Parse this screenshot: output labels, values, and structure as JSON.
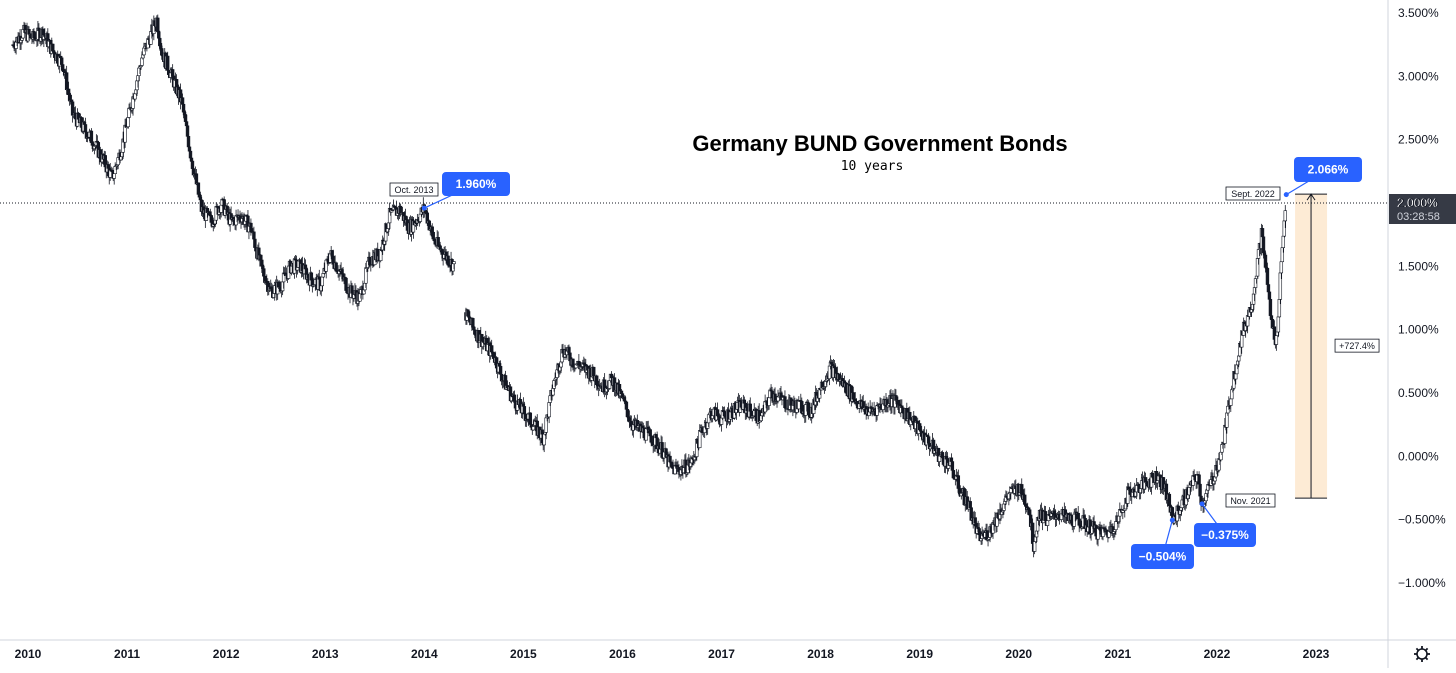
{
  "chart_data": {
    "type": "candlestick",
    "title": "Germany BUND Government Bonds",
    "subtitle": "10 years",
    "y_unit": "%",
    "ylim": [
      -1.2,
      3.6
    ],
    "y_ticks": [
      "3.500%",
      "3.000%",
      "2.500%",
      "2.000%",
      "1.500%",
      "1.000%",
      "0.500%",
      "0.000%",
      "−0.500%",
      "−1.000%"
    ],
    "y_tick_values": [
      3.5,
      3.0,
      2.5,
      2.0,
      1.5,
      1.0,
      0.5,
      0.0,
      -0.5,
      -1.0
    ],
    "x_ticks": [
      "2010",
      "2011",
      "2012",
      "2013",
      "2014",
      "2015",
      "2016",
      "2017",
      "2018",
      "2019",
      "2020",
      "2021",
      "2022",
      "2023"
    ],
    "x_tick_values": [
      2010,
      2011,
      2012,
      2013,
      2014,
      2015,
      2016,
      2017,
      2018,
      2019,
      2020,
      2021,
      2022,
      2023
    ],
    "xlim": [
      2009.85,
      2023.6
    ],
    "current_price": {
      "label": "2.000%",
      "value": 2.0,
      "countdown": "03:28:58"
    },
    "callouts": [
      {
        "label": "1.960%",
        "x": 2014.0,
        "y": 1.96,
        "color": "#2962ff"
      },
      {
        "label": "2.066%",
        "x": 2022.7,
        "y": 2.066,
        "color": "#2962ff"
      },
      {
        "label": "−0.504%",
        "x": 2021.55,
        "y": -0.504,
        "color": "#2962ff"
      },
      {
        "label": "−0.375%",
        "x": 2021.85,
        "y": -0.375,
        "color": "#2962ff"
      }
    ],
    "date_labels": [
      {
        "label": "Oct. 2013",
        "x": 2013.8
      },
      {
        "label": "Sept. 2022",
        "x": 2022.7
      },
      {
        "label": "Nov. 2021",
        "x": 2021.85
      }
    ],
    "range_measure": {
      "label": "+727.4%",
      "x": 2022.95,
      "from": -0.33,
      "to": 2.07,
      "color": "#f7a541"
    },
    "series": [
      {
        "points": [
          [
            2009.85,
            3.25
          ],
          [
            2009.95,
            3.35
          ],
          [
            2010.05,
            3.3
          ],
          [
            2010.15,
            3.35
          ],
          [
            2010.25,
            3.2
          ],
          [
            2010.35,
            3.1
          ],
          [
            2010.45,
            2.7
          ],
          [
            2010.55,
            2.6
          ],
          [
            2010.65,
            2.5
          ],
          [
            2010.75,
            2.35
          ],
          [
            2010.85,
            2.2
          ],
          [
            2010.95,
            2.45
          ],
          [
            2011.05,
            2.8
          ],
          [
            2011.15,
            3.15
          ],
          [
            2011.25,
            3.35
          ],
          [
            2011.3,
            3.45
          ],
          [
            2011.35,
            3.2
          ],
          [
            2011.45,
            3.0
          ],
          [
            2011.55,
            2.8
          ],
          [
            2011.65,
            2.35
          ],
          [
            2011.75,
            1.95
          ],
          [
            2011.85,
            1.85
          ],
          [
            2011.95,
            2.0
          ],
          [
            2012.05,
            1.85
          ],
          [
            2012.15,
            1.9
          ],
          [
            2012.25,
            1.8
          ],
          [
            2012.35,
            1.5
          ],
          [
            2012.45,
            1.3
          ],
          [
            2012.55,
            1.35
          ],
          [
            2012.65,
            1.5
          ],
          [
            2012.75,
            1.5
          ],
          [
            2012.85,
            1.4
          ],
          [
            2012.95,
            1.35
          ],
          [
            2013.05,
            1.6
          ],
          [
            2013.15,
            1.45
          ],
          [
            2013.25,
            1.3
          ],
          [
            2013.35,
            1.25
          ],
          [
            2013.45,
            1.55
          ],
          [
            2013.55,
            1.6
          ],
          [
            2013.65,
            1.9
          ],
          [
            2013.75,
            1.95
          ],
          [
            2013.85,
            1.8
          ],
          [
            2013.95,
            1.9
          ],
          [
            2014.0,
            1.96
          ],
          [
            2014.1,
            1.7
          ],
          [
            2014.2,
            1.6
          ],
          [
            2014.3,
            1.5
          ],
          [
            2014.4,
            1.15
          ],
          [
            2014.5,
            1.0
          ],
          [
            2014.6,
            0.9
          ],
          [
            2014.7,
            0.8
          ],
          [
            2014.8,
            0.6
          ],
          [
            2014.9,
            0.45
          ],
          [
            2015.0,
            0.35
          ],
          [
            2015.1,
            0.25
          ],
          [
            2015.2,
            0.15
          ],
          [
            2015.3,
            0.55
          ],
          [
            2015.4,
            0.85
          ],
          [
            2015.5,
            0.75
          ],
          [
            2015.6,
            0.7
          ],
          [
            2015.7,
            0.65
          ],
          [
            2015.8,
            0.55
          ],
          [
            2015.9,
            0.6
          ],
          [
            2016.0,
            0.45
          ],
          [
            2016.1,
            0.25
          ],
          [
            2016.2,
            0.2
          ],
          [
            2016.3,
            0.15
          ],
          [
            2016.4,
            0.05
          ],
          [
            2016.5,
            -0.1
          ],
          [
            2016.6,
            -0.1
          ],
          [
            2016.7,
            -0.05
          ],
          [
            2016.8,
            0.2
          ],
          [
            2016.9,
            0.35
          ],
          [
            2017.0,
            0.3
          ],
          [
            2017.1,
            0.35
          ],
          [
            2017.2,
            0.4
          ],
          [
            2017.3,
            0.35
          ],
          [
            2017.4,
            0.3
          ],
          [
            2017.5,
            0.5
          ],
          [
            2017.6,
            0.45
          ],
          [
            2017.7,
            0.4
          ],
          [
            2017.8,
            0.4
          ],
          [
            2017.9,
            0.35
          ],
          [
            2018.0,
            0.55
          ],
          [
            2018.1,
            0.7
          ],
          [
            2018.2,
            0.6
          ],
          [
            2018.3,
            0.5
          ],
          [
            2018.4,
            0.4
          ],
          [
            2018.5,
            0.35
          ],
          [
            2018.6,
            0.4
          ],
          [
            2018.7,
            0.45
          ],
          [
            2018.8,
            0.4
          ],
          [
            2018.9,
            0.3
          ],
          [
            2019.0,
            0.2
          ],
          [
            2019.1,
            0.1
          ],
          [
            2019.2,
            0.0
          ],
          [
            2019.3,
            -0.05
          ],
          [
            2019.4,
            -0.25
          ],
          [
            2019.5,
            -0.4
          ],
          [
            2019.6,
            -0.65
          ],
          [
            2019.7,
            -0.6
          ],
          [
            2019.8,
            -0.45
          ],
          [
            2019.9,
            -0.3
          ],
          [
            2020.0,
            -0.25
          ],
          [
            2020.1,
            -0.4
          ],
          [
            2020.15,
            -0.7
          ],
          [
            2020.2,
            -0.45
          ],
          [
            2020.3,
            -0.5
          ],
          [
            2020.4,
            -0.45
          ],
          [
            2020.5,
            -0.5
          ],
          [
            2020.6,
            -0.5
          ],
          [
            2020.7,
            -0.55
          ],
          [
            2020.8,
            -0.6
          ],
          [
            2020.9,
            -0.6
          ],
          [
            2021.0,
            -0.5
          ],
          [
            2021.1,
            -0.3
          ],
          [
            2021.2,
            -0.25
          ],
          [
            2021.3,
            -0.2
          ],
          [
            2021.4,
            -0.15
          ],
          [
            2021.5,
            -0.3
          ],
          [
            2021.55,
            -0.504
          ],
          [
            2021.6,
            -0.45
          ],
          [
            2021.7,
            -0.3
          ],
          [
            2021.8,
            -0.15
          ],
          [
            2021.85,
            -0.375
          ],
          [
            2021.95,
            -0.2
          ],
          [
            2022.05,
            0.05
          ],
          [
            2022.15,
            0.55
          ],
          [
            2022.25,
            0.95
          ],
          [
            2022.35,
            1.2
          ],
          [
            2022.45,
            1.75
          ],
          [
            2022.5,
            1.45
          ],
          [
            2022.55,
            1.05
          ],
          [
            2022.6,
            0.9
          ],
          [
            2022.65,
            1.55
          ],
          [
            2022.7,
            2.066
          ]
        ]
      }
    ]
  }
}
